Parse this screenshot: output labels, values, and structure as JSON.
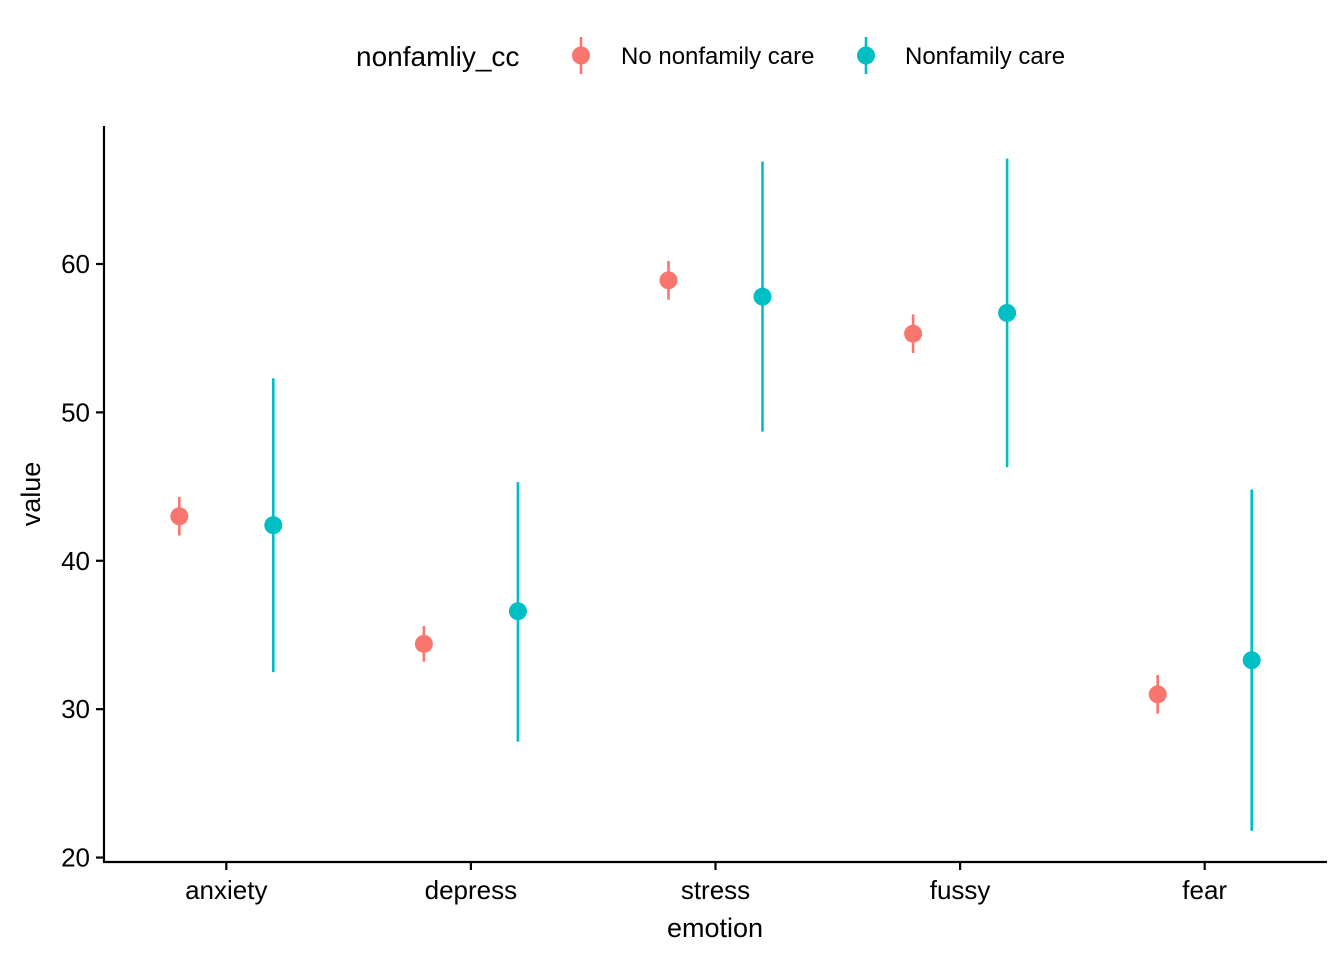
{
  "chart_data": {
    "type": "scatter",
    "title": "",
    "xlabel": "emotion",
    "ylabel": "value",
    "categories": [
      "anxiety",
      "depress",
      "stress",
      "fussy",
      "fear"
    ],
    "y_ticks": [
      20,
      30,
      40,
      50,
      60
    ],
    "ylim": [
      19.7,
      69.3
    ],
    "grid": false,
    "legend": {
      "title": "nonfamliy_cc",
      "position": "top"
    },
    "series": [
      {
        "name": "No nonfamily care",
        "color": "#F8766D",
        "values": [
          43.0,
          34.4,
          58.9,
          55.3,
          31.0
        ],
        "lower": [
          41.7,
          33.2,
          57.6,
          54.0,
          29.7
        ],
        "upper": [
          44.3,
          35.6,
          60.2,
          56.6,
          32.3
        ]
      },
      {
        "name": "Nonfamily care",
        "color": "#00BFC4",
        "values": [
          42.4,
          36.6,
          57.8,
          56.7,
          33.3
        ],
        "lower": [
          32.5,
          27.8,
          48.7,
          46.3,
          21.8
        ],
        "upper": [
          52.3,
          45.3,
          66.9,
          67.1,
          44.8
        ]
      }
    ]
  }
}
